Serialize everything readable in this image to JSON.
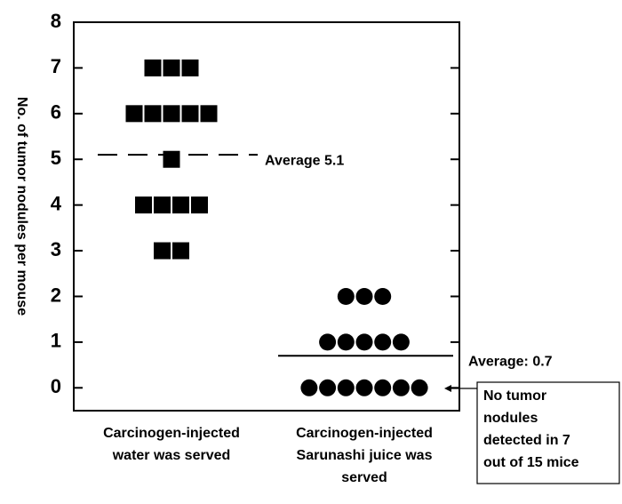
{
  "chart_data": {
    "type": "strip",
    "y_label": "No. of tumor nodules per mouse",
    "categories": [
      [
        "Carcinogen-injected",
        "water was served"
      ],
      [
        "Carcinogen-injected",
        "Sarunashi juice was",
        "served"
      ]
    ],
    "series": [
      {
        "marker": "square",
        "color": "#000000",
        "values": [
          7,
          7,
          7,
          6,
          6,
          6,
          6,
          6,
          5,
          4,
          4,
          4,
          4,
          3,
          3
        ]
      },
      {
        "marker": "circle",
        "color": "#000000",
        "values": [
          2,
          2,
          2,
          1,
          1,
          1,
          1,
          1,
          0,
          0,
          0,
          0,
          0,
          0,
          0
        ]
      }
    ],
    "mean_lines": [
      {
        "value": 5.1,
        "label": "Average 5.1",
        "style": "dashed"
      },
      {
        "value": 0.7,
        "label": "Average: 0.7",
        "style": "solid"
      }
    ],
    "annotation": [
      "No tumor",
      "nodules",
      "detected in 7",
      "out of 15 mice"
    ],
    "ylim": [
      -0.5,
      8
    ],
    "yticks": [
      0,
      1,
      2,
      3,
      4,
      5,
      6,
      7,
      8
    ]
  }
}
